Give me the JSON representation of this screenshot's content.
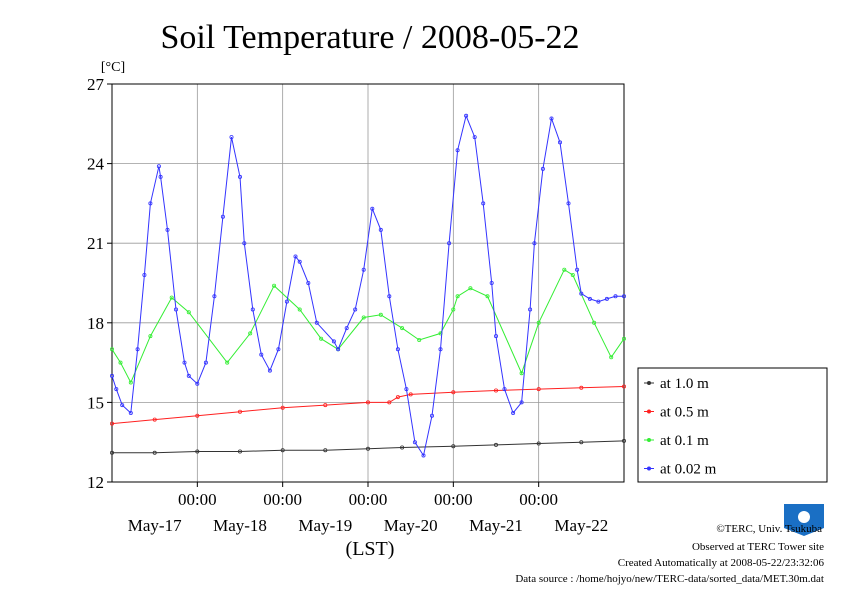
{
  "chart_data": {
    "type": "line",
    "title": "Soil Temperature / 2008-05-22",
    "ylabel": "[°C]",
    "xlabel": "(LST)",
    "ylim": [
      12,
      27
    ],
    "xlim": [
      0,
      6
    ],
    "yticks": [
      "12",
      "15",
      "18",
      "21",
      "24",
      "27"
    ],
    "xtick_time_labels": [
      "00:00",
      "00:00",
      "00:00",
      "00:00",
      "00:00"
    ],
    "xtick_time_positions": [
      1,
      2,
      3,
      4,
      5
    ],
    "x_date_labels": [
      "May-17",
      "May-18",
      "May-19",
      "May-20",
      "May-21",
      "May-22"
    ],
    "x_date_positions": [
      0.5,
      1.5,
      2.5,
      3.5,
      4.5,
      5.5
    ],
    "grid": true,
    "legend_position": "right",
    "series": [
      {
        "name": "at 1.0 m",
        "color": "#333333",
        "x": [
          0,
          0.5,
          1,
          1.5,
          2,
          2.5,
          3,
          3.4,
          4,
          4.5,
          5,
          5.5,
          6
        ],
        "values": [
          13.1,
          13.1,
          13.15,
          13.15,
          13.2,
          13.2,
          13.25,
          13.3,
          13.35,
          13.4,
          13.45,
          13.5,
          13.55
        ]
      },
      {
        "name": "at 0.5 m",
        "color": "#ff2020",
        "x": [
          0,
          0.5,
          1,
          1.5,
          2,
          2.5,
          3,
          3.25,
          3.35,
          3.5,
          4,
          4.5,
          5,
          5.5,
          6
        ],
        "values": [
          14.2,
          14.35,
          14.5,
          14.65,
          14.8,
          14.9,
          15.0,
          15.0,
          15.2,
          15.3,
          15.38,
          15.45,
          15.5,
          15.55,
          15.6
        ]
      },
      {
        "name": "at 0.1 m",
        "color": "#33ee33",
        "x": [
          0,
          0.1,
          0.22,
          0.45,
          0.7,
          0.9,
          1.35,
          1.62,
          1.9,
          2.2,
          2.45,
          2.65,
          2.95,
          3.15,
          3.4,
          3.6,
          3.85,
          4.0,
          4.05,
          4.2,
          4.4,
          4.8,
          5.0,
          5.3,
          5.4,
          5.65,
          5.85,
          6.0
        ],
        "values": [
          17.0,
          16.5,
          15.75,
          17.5,
          18.95,
          18.4,
          16.5,
          17.6,
          19.4,
          18.5,
          17.4,
          17.0,
          18.2,
          18.3,
          17.8,
          17.35,
          17.6,
          18.5,
          19.0,
          19.3,
          19.0,
          16.1,
          18.0,
          20.0,
          19.8,
          18.0,
          16.7,
          17.4
        ]
      },
      {
        "name": "at 0.02 m",
        "color": "#3333ff",
        "x": [
          0,
          0.05,
          0.12,
          0.22,
          0.3,
          0.38,
          0.45,
          0.55,
          0.57,
          0.65,
          0.75,
          0.85,
          0.9,
          1.0,
          1.1,
          1.2,
          1.3,
          1.4,
          1.5,
          1.55,
          1.65,
          1.75,
          1.85,
          1.95,
          2.05,
          2.15,
          2.2,
          2.3,
          2.4,
          2.6,
          2.65,
          2.75,
          2.85,
          2.95,
          3.05,
          3.15,
          3.25,
          3.35,
          3.45,
          3.55,
          3.65,
          3.75,
          3.85,
          3.95,
          4.05,
          4.15,
          4.25,
          4.35,
          4.45,
          4.5,
          4.6,
          4.7,
          4.8,
          4.9,
          4.95,
          5.05,
          5.15,
          5.25,
          5.35,
          5.45,
          5.5,
          5.6,
          5.7,
          5.8,
          5.9,
          6.0
        ],
        "values": [
          16.0,
          15.5,
          14.9,
          14.6,
          17.0,
          19.8,
          22.5,
          23.9,
          23.5,
          21.5,
          18.5,
          16.5,
          16.0,
          15.7,
          16.5,
          19.0,
          22.0,
          25.0,
          23.5,
          21.0,
          18.5,
          16.8,
          16.2,
          17.0,
          18.8,
          20.5,
          20.3,
          19.5,
          18.0,
          17.3,
          17.0,
          17.8,
          18.5,
          20.0,
          22.3,
          21.5,
          19.0,
          17.0,
          15.5,
          13.5,
          13.0,
          14.5,
          17.0,
          21.0,
          24.5,
          25.8,
          25.0,
          22.5,
          19.5,
          17.5,
          15.5,
          14.6,
          15.0,
          18.5,
          21.0,
          23.8,
          25.7,
          24.8,
          22.5,
          20.0,
          19.1,
          18.9,
          18.8,
          18.9,
          19.0,
          19.0
        ]
      }
    ]
  },
  "credits": {
    "copyright": "©TERC, Univ. Tsukuba",
    "observed": "Observed at TERC Tower site",
    "created": "Created Automatically at 2008-05-22/23:32:06",
    "source": "Data source : /home/hojyo/new/TERC-data/sorted_data/MET.30m.dat"
  },
  "logo": {
    "label": "TERC",
    "color": "#1a6fc4"
  }
}
